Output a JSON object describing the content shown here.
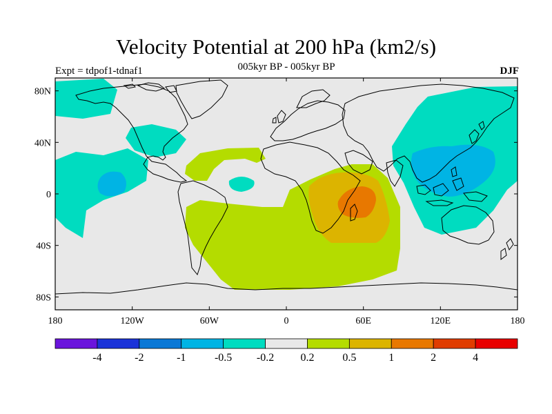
{
  "header": {
    "title": "Velocity Potential at 200 hPa (km2/s)",
    "subtitle": "005kyr BP - 005kyr BP",
    "experiment": "Expt = tdpof1-tdnaf1",
    "season": "DJF"
  },
  "map": {
    "projection": "cylindrical-equidistant",
    "lon_range": [
      -180,
      180
    ],
    "lat_range": [
      -90,
      90
    ],
    "x_ticks": [
      {
        "lon": -180,
        "label": "180"
      },
      {
        "lon": -120,
        "label": "120W"
      },
      {
        "lon": -60,
        "label": "60W"
      },
      {
        "lon": 0,
        "label": "0"
      },
      {
        "lon": 60,
        "label": "60E"
      },
      {
        "lon": 120,
        "label": "120E"
      },
      {
        "lon": 180,
        "label": "180"
      }
    ],
    "y_ticks": [
      {
        "lat": 80,
        "label": "80N"
      },
      {
        "lat": 40,
        "label": "40N"
      },
      {
        "lat": 0,
        "label": "0"
      },
      {
        "lat": -40,
        "label": "40S"
      },
      {
        "lat": -80,
        "label": "80S"
      }
    ],
    "background_color": "#e8e8e8",
    "coastline_color": "#000000"
  },
  "colorbar": {
    "colors": [
      "#6a14dc",
      "#1a32d8",
      "#0a78d6",
      "#00b4e4",
      "#00dcc0",
      "#e8e8e8",
      "#b4dc00",
      "#dcb400",
      "#e87800",
      "#e03c00",
      "#e80000"
    ],
    "labels": [
      "-4",
      "-2",
      "-1",
      "-0.5",
      "-0.2",
      "0.2",
      "0.5",
      "1",
      "2",
      "4"
    ]
  },
  "chart_data": {
    "type": "heatmap",
    "title": "Velocity Potential at 200 hPa (km2/s)",
    "units": "km2/s",
    "levels": [
      -4,
      -2,
      -1,
      -0.5,
      -0.2,
      0.2,
      0.5,
      1,
      2,
      4
    ],
    "regions": [
      {
        "name": "North Pacific (NW)",
        "sign": "negative",
        "level_range": [
          -0.5,
          -0.2
        ]
      },
      {
        "name": "Central North Pacific core",
        "sign": "negative",
        "level_range": [
          -1,
          -0.5
        ]
      },
      {
        "name": "NW Atlantic / N America",
        "sign": "negative",
        "level_range": [
          -0.5,
          -0.2
        ]
      },
      {
        "name": "Equatorial Atlantic",
        "sign": "negative",
        "level_range": [
          -0.5,
          -0.2
        ]
      },
      {
        "name": "Asia / West Pacific",
        "sign": "negative",
        "level_range": [
          -0.5,
          -0.2
        ]
      },
      {
        "name": "Maritime Continent core",
        "sign": "negative",
        "level_range": [
          -1,
          -0.5
        ]
      },
      {
        "name": "Tropical Atlantic / S America",
        "sign": "positive",
        "level_range": [
          0.2,
          0.5
        ]
      },
      {
        "name": "South Atlantic / Southern Ocean",
        "sign": "positive",
        "level_range": [
          0.2,
          0.5
        ]
      },
      {
        "name": "Africa / Indian Ocean",
        "sign": "positive",
        "level_range": [
          0.5,
          1
        ]
      },
      {
        "name": "Madagascar core",
        "sign": "positive",
        "level_range": [
          1,
          2
        ]
      }
    ]
  }
}
